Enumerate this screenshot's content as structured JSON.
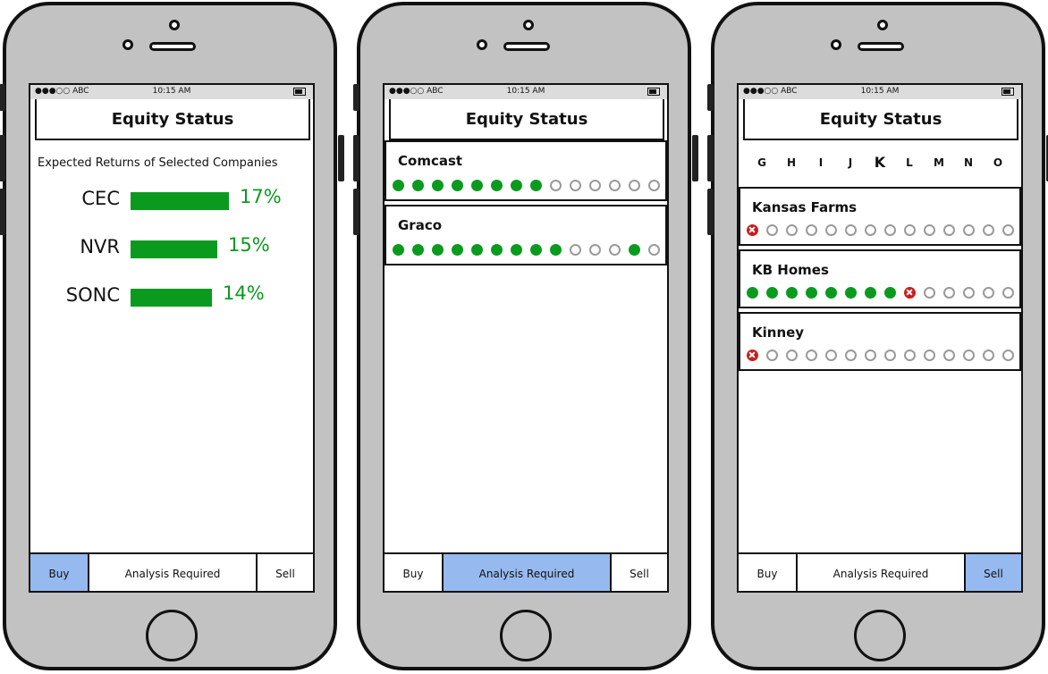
{
  "app_title": "Equity Status",
  "status_bar": {
    "carrier": "●●●○○ ABC",
    "time": "10:15 AM"
  },
  "tabs": [
    "Buy",
    "Analysis Required",
    "Sell"
  ],
  "colors": {
    "green": "#0a9b1e",
    "tab_selected": "#96b9ef",
    "red": "#c81e1e"
  },
  "screen1": {
    "subtitle": "Expected Returns of Selected Companies",
    "selected_tab": "Buy",
    "rows": [
      {
        "ticker": "CEC",
        "percent": "17%",
        "value": 17
      },
      {
        "ticker": "NVR",
        "percent": "15%",
        "value": 15
      },
      {
        "ticker": "SONC",
        "percent": "14%",
        "value": 14
      }
    ]
  },
  "screen2": {
    "selected_tab": "Analysis Required",
    "companies": [
      {
        "name": "Comcast",
        "dots": [
          "on",
          "on",
          "on",
          "on",
          "on",
          "on",
          "on",
          "on",
          "off",
          "off",
          "off",
          "off",
          "off",
          "off"
        ]
      },
      {
        "name": "Graco",
        "dots": [
          "on",
          "on",
          "on",
          "on",
          "on",
          "on",
          "on",
          "on",
          "on",
          "off",
          "off",
          "off",
          "on",
          "off"
        ]
      }
    ]
  },
  "screen3": {
    "selected_tab": "Sell",
    "alphabet": [
      "G",
      "H",
      "I",
      "J",
      "K",
      "L",
      "M",
      "N",
      "O"
    ],
    "companies": [
      {
        "name": "Kansas Farms",
        "dots": [
          "x",
          "off",
          "off",
          "off",
          "off",
          "off",
          "off",
          "off",
          "off",
          "off",
          "off",
          "off",
          "off",
          "off"
        ]
      },
      {
        "name": "KB Homes",
        "dots": [
          "on",
          "on",
          "on",
          "on",
          "on",
          "on",
          "on",
          "on",
          "x",
          "off",
          "off",
          "off",
          "off",
          "off"
        ]
      },
      {
        "name": "Kinney",
        "dots": [
          "x",
          "off",
          "off",
          "off",
          "off",
          "off",
          "off",
          "off",
          "off",
          "off",
          "off",
          "off",
          "off",
          "off"
        ]
      }
    ]
  }
}
